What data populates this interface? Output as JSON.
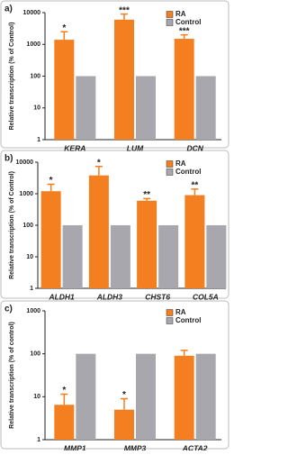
{
  "chart_data": [
    {
      "type": "bar",
      "panel": "a)",
      "ylabel": "Relative transcription (% of Control)",
      "log": true,
      "categories": [
        "KERA",
        "LUM",
        "DCN"
      ],
      "series": [
        {
          "name": "RA",
          "color": "#f47f20",
          "values": [
            1400,
            6000,
            1500
          ],
          "errors": [
            1100,
            3000,
            500
          ]
        },
        {
          "name": "Control",
          "color": "#a7a7ad",
          "values": [
            100,
            100,
            100
          ]
        }
      ],
      "annotations": [
        "*",
        "***",
        "***"
      ],
      "ylim": [
        1,
        10000
      ],
      "yticks": [
        1,
        10,
        100,
        1000,
        10000
      ]
    },
    {
      "type": "bar",
      "panel": "b)",
      "ylabel": "Relative transcription (% of Control)",
      "log": true,
      "categories": [
        "ALDH1",
        "ALDH3",
        "CHST6",
        "COL5A"
      ],
      "series": [
        {
          "name": "RA",
          "color": "#f47f20",
          "values": [
            1200,
            3800,
            600,
            900
          ],
          "errors": [
            800,
            3500,
            100,
            500
          ]
        },
        {
          "name": "Control",
          "color": "#a7a7ad",
          "values": [
            100,
            100,
            100,
            100
          ]
        }
      ],
      "annotations": [
        "*",
        "*",
        "**",
        "**"
      ],
      "ylim": [
        1,
        10000
      ],
      "yticks": [
        1,
        10,
        100,
        1000,
        10000
      ]
    },
    {
      "type": "bar",
      "panel": "c)",
      "ylabel": "Relative transcription (% of control)",
      "log": true,
      "categories": [
        "MMP1",
        "MMP3",
        "ACTA2"
      ],
      "series": [
        {
          "name": "RA",
          "color": "#f47f20",
          "values": [
            6.5,
            5,
            90
          ],
          "errors": [
            5,
            4,
            30
          ]
        },
        {
          "name": "Control",
          "color": "#a7a7ad",
          "values": [
            100,
            100,
            100
          ]
        }
      ],
      "annotations": [
        "*",
        "*",
        null
      ],
      "ylim": [
        1,
        1000
      ],
      "yticks": [
        1,
        10,
        100,
        1000
      ]
    }
  ]
}
